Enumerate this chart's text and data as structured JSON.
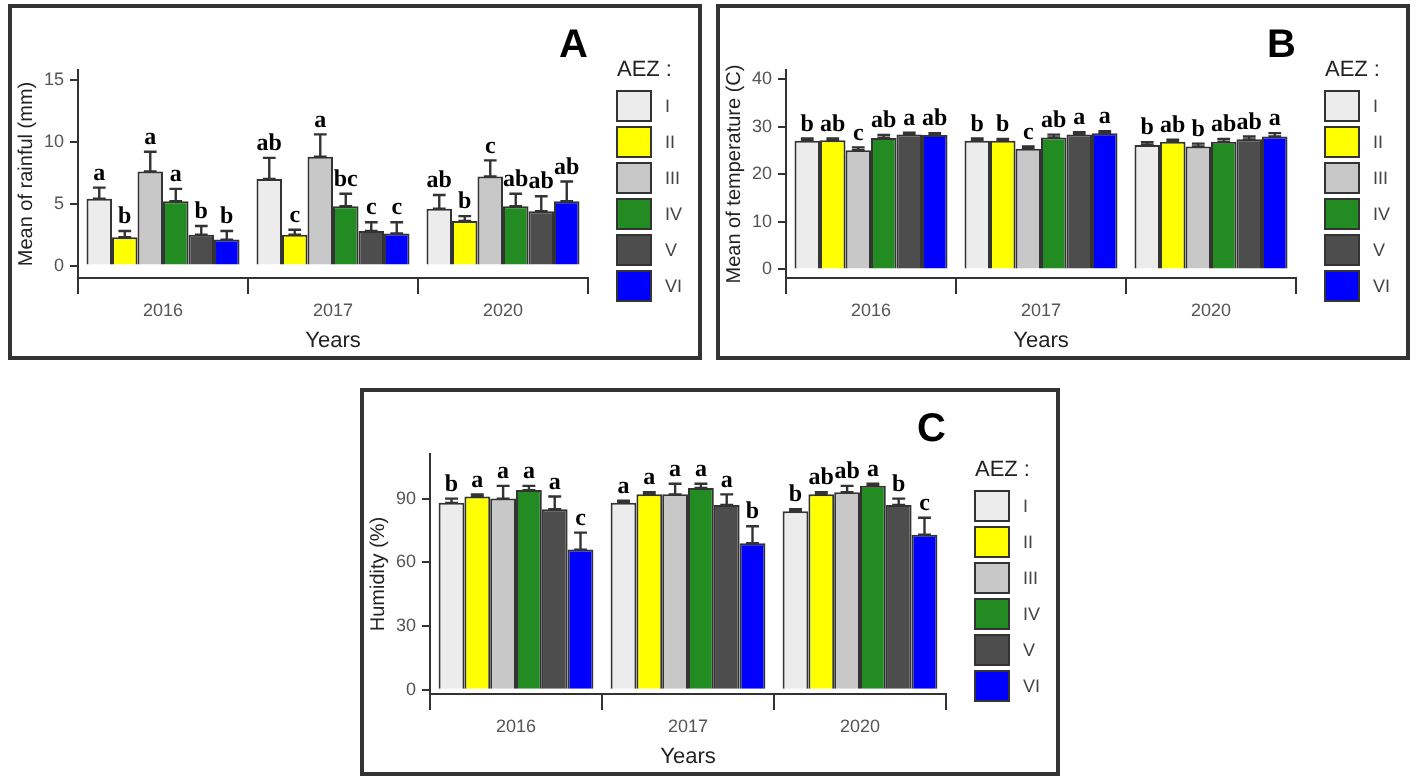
{
  "chart_data": [
    {
      "type": "bar",
      "title": "A",
      "xlabel": "Years",
      "ylabel": "Mean of rainful (mm)",
      "legend_title": "AEZ :",
      "legend": "right",
      "grid": false,
      "categories": [
        "2016",
        "2017",
        "2020"
      ],
      "ylim": [
        -1,
        15.8
      ],
      "yticks": [
        0,
        5,
        10,
        15
      ],
      "series": [
        {
          "name": "I",
          "color": "#ececec",
          "values": [
            5.4,
            7.0,
            4.6
          ],
          "errors": [
            [
              5.4,
              6.3
            ],
            [
              7.0,
              8.7
            ],
            [
              4.6,
              5.7
            ]
          ],
          "value_labels": [
            "a",
            "ab",
            "ab"
          ]
        },
        {
          "name": "II",
          "color": "#ffff00",
          "values": [
            2.3,
            2.5,
            3.6
          ],
          "errors": [
            [
              2.3,
              2.8
            ],
            [
              2.5,
              2.9
            ],
            [
              3.6,
              4.0
            ]
          ],
          "value_labels": [
            "b",
            "c",
            "b"
          ]
        },
        {
          "name": "III",
          "color": "#c8c8c8",
          "values": [
            7.6,
            8.8,
            7.2
          ],
          "errors": [
            [
              7.6,
              9.2
            ],
            [
              8.8,
              10.6
            ],
            [
              7.2,
              8.5
            ]
          ],
          "value_labels": [
            "a",
            "a",
            "c"
          ]
        },
        {
          "name": "IV",
          "color": "#228b22",
          "values": [
            5.2,
            4.8,
            4.8
          ],
          "errors": [
            [
              5.2,
              6.2
            ],
            [
              4.8,
              5.8
            ],
            [
              4.8,
              5.8
            ]
          ],
          "value_labels": [
            "a",
            "bc",
            "ab"
          ]
        },
        {
          "name": "V",
          "color": "#4d4d4d",
          "values": [
            2.5,
            2.8,
            4.4
          ],
          "errors": [
            [
              2.5,
              3.2
            ],
            [
              2.8,
              3.5
            ],
            [
              4.4,
              5.6
            ]
          ],
          "value_labels": [
            "b",
            "c",
            "ab"
          ]
        },
        {
          "name": "VI",
          "color": "#0000ff",
          "values": [
            2.1,
            2.6,
            5.2
          ],
          "errors": [
            [
              2.1,
              2.8
            ],
            [
              2.6,
              3.5
            ],
            [
              5.2,
              6.8
            ]
          ],
          "value_labels": [
            "b",
            "c",
            "ab"
          ]
        }
      ]
    },
    {
      "type": "bar",
      "title": "B",
      "xlabel": "Years",
      "ylabel": "Mean of temperature (C)",
      "legend_title": "AEZ :",
      "legend": "right",
      "grid": false,
      "categories": [
        "2016",
        "2017",
        "2020"
      ],
      "ylim": [
        -1.8,
        42
      ],
      "yticks": [
        0,
        10,
        20,
        30,
        40
      ],
      "series": [
        {
          "name": "I",
          "color": "#ececec",
          "values": [
            27.1,
            27.1,
            26.2
          ],
          "errors": [
            [
              27.1,
              27.6
            ],
            [
              27.1,
              27.6
            ],
            [
              26.2,
              26.8
            ]
          ],
          "value_labels": [
            "b",
            "b",
            "b"
          ]
        },
        {
          "name": "II",
          "color": "#ffff00",
          "values": [
            27.2,
            27.1,
            26.9
          ],
          "errors": [
            [
              27.2,
              27.6
            ],
            [
              27.1,
              27.5
            ],
            [
              26.9,
              27.3
            ]
          ],
          "value_labels": [
            "ab",
            "b",
            "ab"
          ]
        },
        {
          "name": "III",
          "color": "#c8c8c8",
          "values": [
            25.1,
            25.4,
            25.9
          ],
          "errors": [
            [
              25.1,
              25.7
            ],
            [
              25.4,
              25.9
            ],
            [
              25.9,
              26.5
            ]
          ],
          "value_labels": [
            "c",
            "c",
            "b"
          ]
        },
        {
          "name": "IV",
          "color": "#228b22",
          "values": [
            27.7,
            27.8,
            26.9
          ],
          "errors": [
            [
              27.7,
              28.3
            ],
            [
              27.8,
              28.4
            ],
            [
              26.9,
              27.5
            ]
          ],
          "value_labels": [
            "ab",
            "ab",
            "ab"
          ]
        },
        {
          "name": "V",
          "color": "#4d4d4d",
          "values": [
            28.4,
            28.4,
            27.4
          ],
          "errors": [
            [
              28.4,
              28.8
            ],
            [
              28.4,
              28.9
            ],
            [
              27.4,
              28.0
            ]
          ],
          "value_labels": [
            "a",
            "a",
            "ab"
          ]
        },
        {
          "name": "VI",
          "color": "#0000ff",
          "values": [
            28.3,
            28.7,
            28.0
          ],
          "errors": [
            [
              28.3,
              28.7
            ],
            [
              28.7,
              29.1
            ],
            [
              28.0,
              28.7
            ]
          ],
          "value_labels": [
            "ab",
            "a",
            "a"
          ]
        }
      ]
    },
    {
      "type": "bar",
      "title": "C",
      "xlabel": "Years",
      "ylabel": "Humidity (%)",
      "legend_title": "AEZ :",
      "legend": "right",
      "grid": false,
      "categories": [
        "2016",
        "2017",
        "2020"
      ],
      "ylim": [
        -2,
        111
      ],
      "yticks": [
        0,
        30,
        60,
        90
      ],
      "series": [
        {
          "name": "I",
          "color": "#ececec",
          "values": [
            88,
            88,
            84
          ],
          "errors": [
            [
              88,
              90
            ],
            [
              88,
              89
            ],
            [
              84,
              85
            ]
          ],
          "value_labels": [
            "b",
            "a",
            "b"
          ]
        },
        {
          "name": "II",
          "color": "#ffff00",
          "values": [
            91,
            92,
            92
          ],
          "errors": [
            [
              91,
              92
            ],
            [
              92,
              93
            ],
            [
              92,
              93
            ]
          ],
          "value_labels": [
            "a",
            "a",
            "ab"
          ]
        },
        {
          "name": "III",
          "color": "#c8c8c8",
          "values": [
            90,
            92,
            93
          ],
          "errors": [
            [
              90,
              96
            ],
            [
              92,
              97
            ],
            [
              93,
              96
            ]
          ],
          "value_labels": [
            "a",
            "a",
            "ab"
          ]
        },
        {
          "name": "IV",
          "color": "#228b22",
          "values": [
            94,
            95,
            96
          ],
          "errors": [
            [
              94,
              96
            ],
            [
              95,
              97
            ],
            [
              96,
              97
            ]
          ],
          "value_labels": [
            "a",
            "a",
            "a"
          ]
        },
        {
          "name": "V",
          "color": "#4d4d4d",
          "values": [
            85,
            87,
            87
          ],
          "errors": [
            [
              85,
              91
            ],
            [
              87,
              92
            ],
            [
              87,
              90
            ]
          ],
          "value_labels": [
            "a",
            "a",
            "b"
          ]
        },
        {
          "name": "VI",
          "color": "#0000ff",
          "values": [
            66,
            69,
            73
          ],
          "errors": [
            [
              66,
              74
            ],
            [
              69,
              77
            ],
            [
              73,
              81
            ]
          ],
          "value_labels": [
            "c",
            "b",
            "c"
          ]
        }
      ]
    }
  ]
}
